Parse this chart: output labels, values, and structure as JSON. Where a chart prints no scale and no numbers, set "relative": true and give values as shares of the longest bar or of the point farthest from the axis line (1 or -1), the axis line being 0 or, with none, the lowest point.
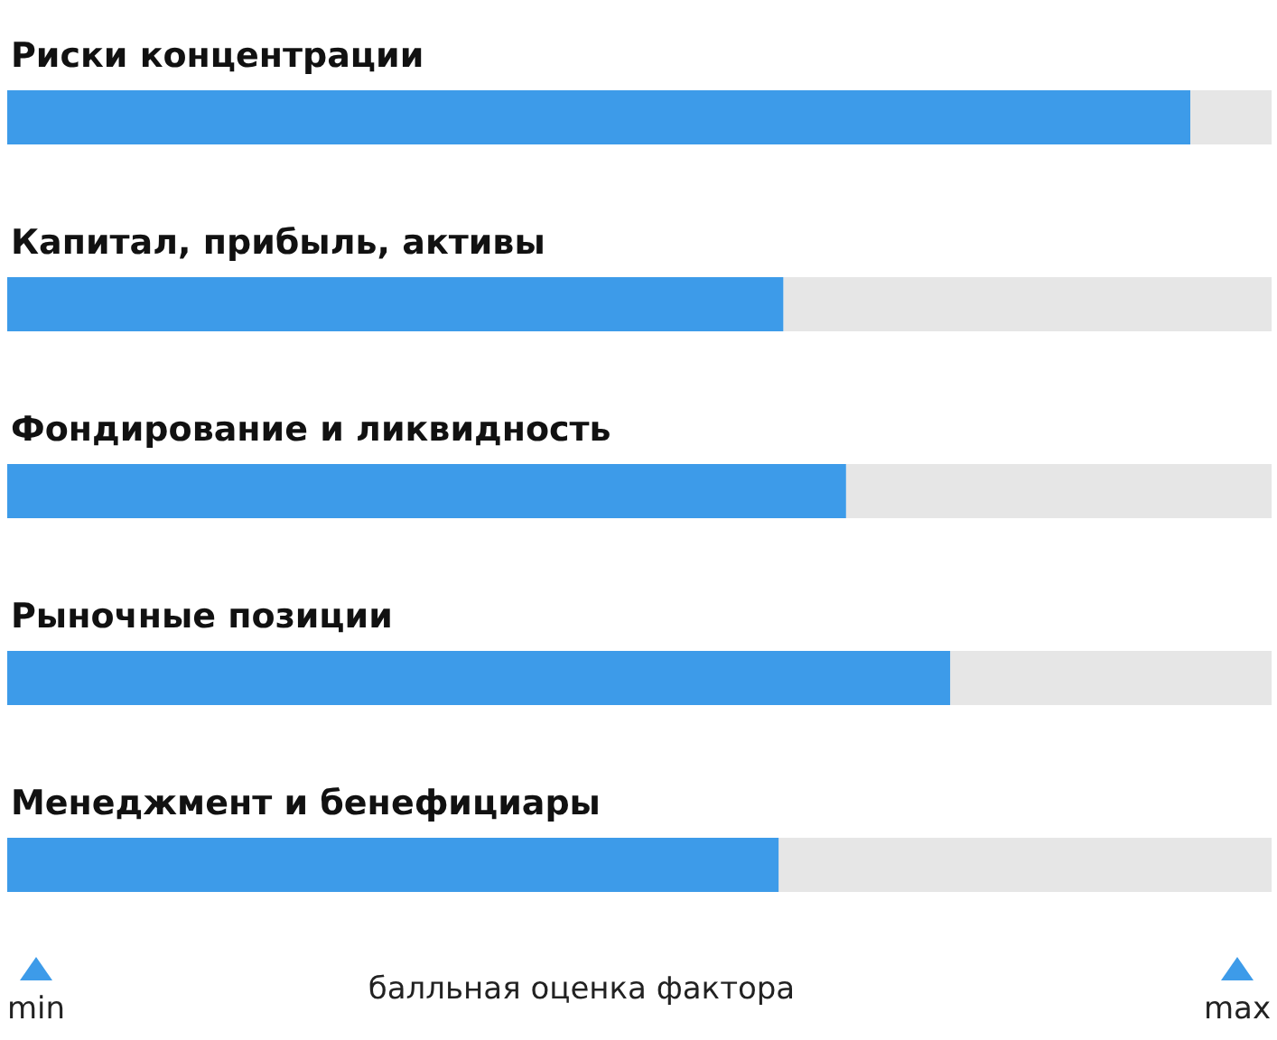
{
  "chart_data": {
    "type": "bar",
    "orientation": "horizontal",
    "relative": true,
    "xlabel": "балльная оценка фактора",
    "categories": [
      "Риски концентрации",
      "Капитал, прибыль, активы",
      "Фондирование и ликвидность",
      "Рыночные позиции",
      "Менеджмент и бенефициары"
    ],
    "values": [
      1,
      0.656,
      0.709,
      0.797,
      0.652
    ],
    "color": "#3d9be9",
    "annotations": [
      "min",
      "max"
    ]
  }
}
